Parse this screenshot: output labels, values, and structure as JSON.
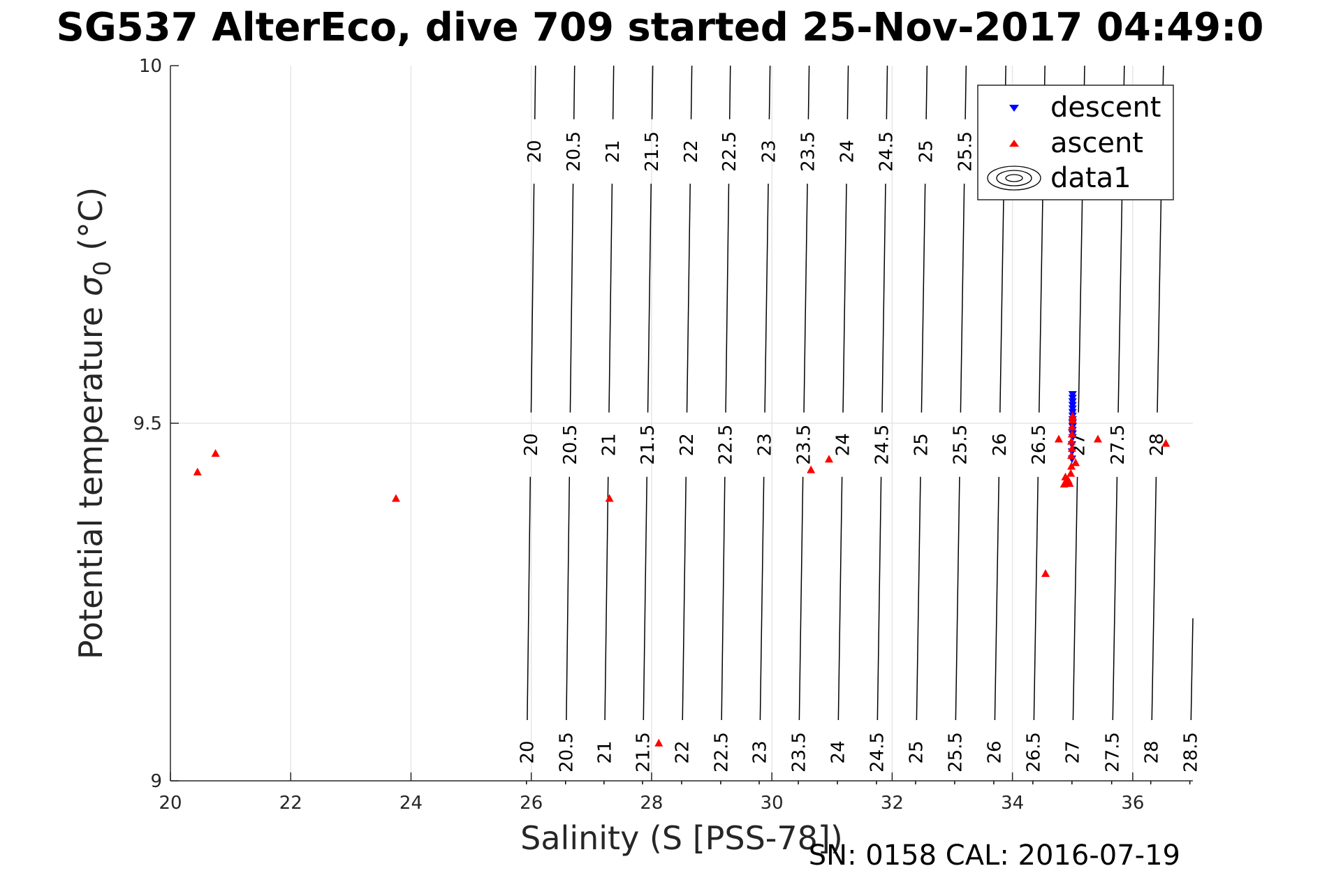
{
  "title": "SG537 AlterEco, dive 709 started 25-Nov-2017 04:49:0",
  "footer": "SN: 0158  CAL: 2016-07-19",
  "colors": {
    "descent": "#0000ff",
    "ascent": "#ff0000",
    "contour": "#000000",
    "grid": "#e6e6e6",
    "axis": "#262626"
  },
  "chart_data": {
    "type": "scatter",
    "xlabel": "Salinity (S [PSS-78])",
    "ylabel_main": "Potential temperature ",
    "ylabel_sigma": "σ",
    "ylabel_sub": "0",
    "ylabel_unit": " (°C)",
    "xlim": [
      20,
      37
    ],
    "ylim": [
      9,
      10
    ],
    "xticks": [
      20,
      22,
      24,
      26,
      28,
      30,
      32,
      34,
      36
    ],
    "yticks": [
      9,
      9.5,
      10
    ],
    "ytick_labels": [
      "9",
      "9.5",
      "10"
    ],
    "grid": true,
    "legend": {
      "position": "top-right",
      "entries": [
        {
          "label": "descent",
          "marker": "triangle-down",
          "color": "#0000ff"
        },
        {
          "label": "ascent",
          "marker": "triangle-up",
          "color": "#ff0000"
        },
        {
          "label": "data1",
          "marker": "contour",
          "color": "#000000"
        }
      ]
    },
    "contours": {
      "levels": [
        20,
        20.5,
        21,
        21.5,
        22,
        22.5,
        23,
        23.5,
        24,
        24.5,
        25,
        25.5,
        26,
        26.5,
        27,
        27.5,
        28,
        28.5
      ],
      "labels": [
        "20",
        "20.5",
        "21",
        "21.5",
        "22",
        "22.5",
        "23",
        "23.5",
        "24",
        "24.5",
        "25",
        "25.5",
        "26",
        "26.5",
        "27",
        "27.5",
        "28",
        "28.5"
      ],
      "salinity_at_t9": [
        25.92,
        26.57,
        27.21,
        27.85,
        28.5,
        29.15,
        29.79,
        30.44,
        31.09,
        31.74,
        32.39,
        33.04,
        33.69,
        34.34,
        34.99,
        35.65,
        36.3,
        36.95
      ],
      "salinity_at_t10": [
        26.07,
        26.72,
        27.37,
        28.02,
        28.67,
        29.31,
        29.97,
        30.62,
        31.27,
        31.92,
        32.58,
        33.23,
        33.89,
        34.54,
        35.2,
        35.86,
        36.51,
        37.17
      ]
    },
    "series": [
      {
        "name": "descent",
        "marker": "triangle-down",
        "color": "#0000ff",
        "points": [
          [
            35.0,
            9.54
          ],
          [
            35.0,
            9.535
          ],
          [
            35.0,
            9.53
          ],
          [
            35.0,
            9.525
          ],
          [
            35.0,
            9.52
          ],
          [
            35.0,
            9.515
          ],
          [
            35.0,
            9.51
          ],
          [
            35.0,
            9.505
          ],
          [
            35.0,
            9.5
          ],
          [
            35.0,
            9.495
          ],
          [
            35.0,
            9.49
          ],
          [
            35.0,
            9.485
          ],
          [
            35.0,
            9.48
          ],
          [
            34.99,
            9.47
          ],
          [
            34.99,
            9.46
          ],
          [
            34.99,
            9.45
          ]
        ]
      },
      {
        "name": "ascent",
        "marker": "triangle-up",
        "color": "#ff0000",
        "points": [
          [
            20.45,
            9.432
          ],
          [
            20.75,
            9.458
          ],
          [
            23.75,
            9.395
          ],
          [
            27.3,
            9.395
          ],
          [
            28.12,
            9.053
          ],
          [
            30.65,
            9.435
          ],
          [
            30.95,
            9.45
          ],
          [
            34.55,
            9.29
          ],
          [
            34.77,
            9.478
          ],
          [
            34.86,
            9.415
          ],
          [
            34.88,
            9.425
          ],
          [
            34.9,
            9.419
          ],
          [
            34.93,
            9.42
          ],
          [
            34.95,
            9.416
          ],
          [
            34.97,
            9.43
          ],
          [
            34.98,
            9.44
          ],
          [
            34.98,
            9.455
          ],
          [
            34.99,
            9.465
          ],
          [
            34.98,
            9.475
          ],
          [
            34.99,
            9.485
          ],
          [
            34.99,
            9.495
          ],
          [
            35.0,
            9.505
          ],
          [
            35.0,
            9.51
          ],
          [
            35.05,
            9.445
          ],
          [
            35.42,
            9.478
          ],
          [
            36.55,
            9.472
          ]
        ]
      }
    ]
  }
}
